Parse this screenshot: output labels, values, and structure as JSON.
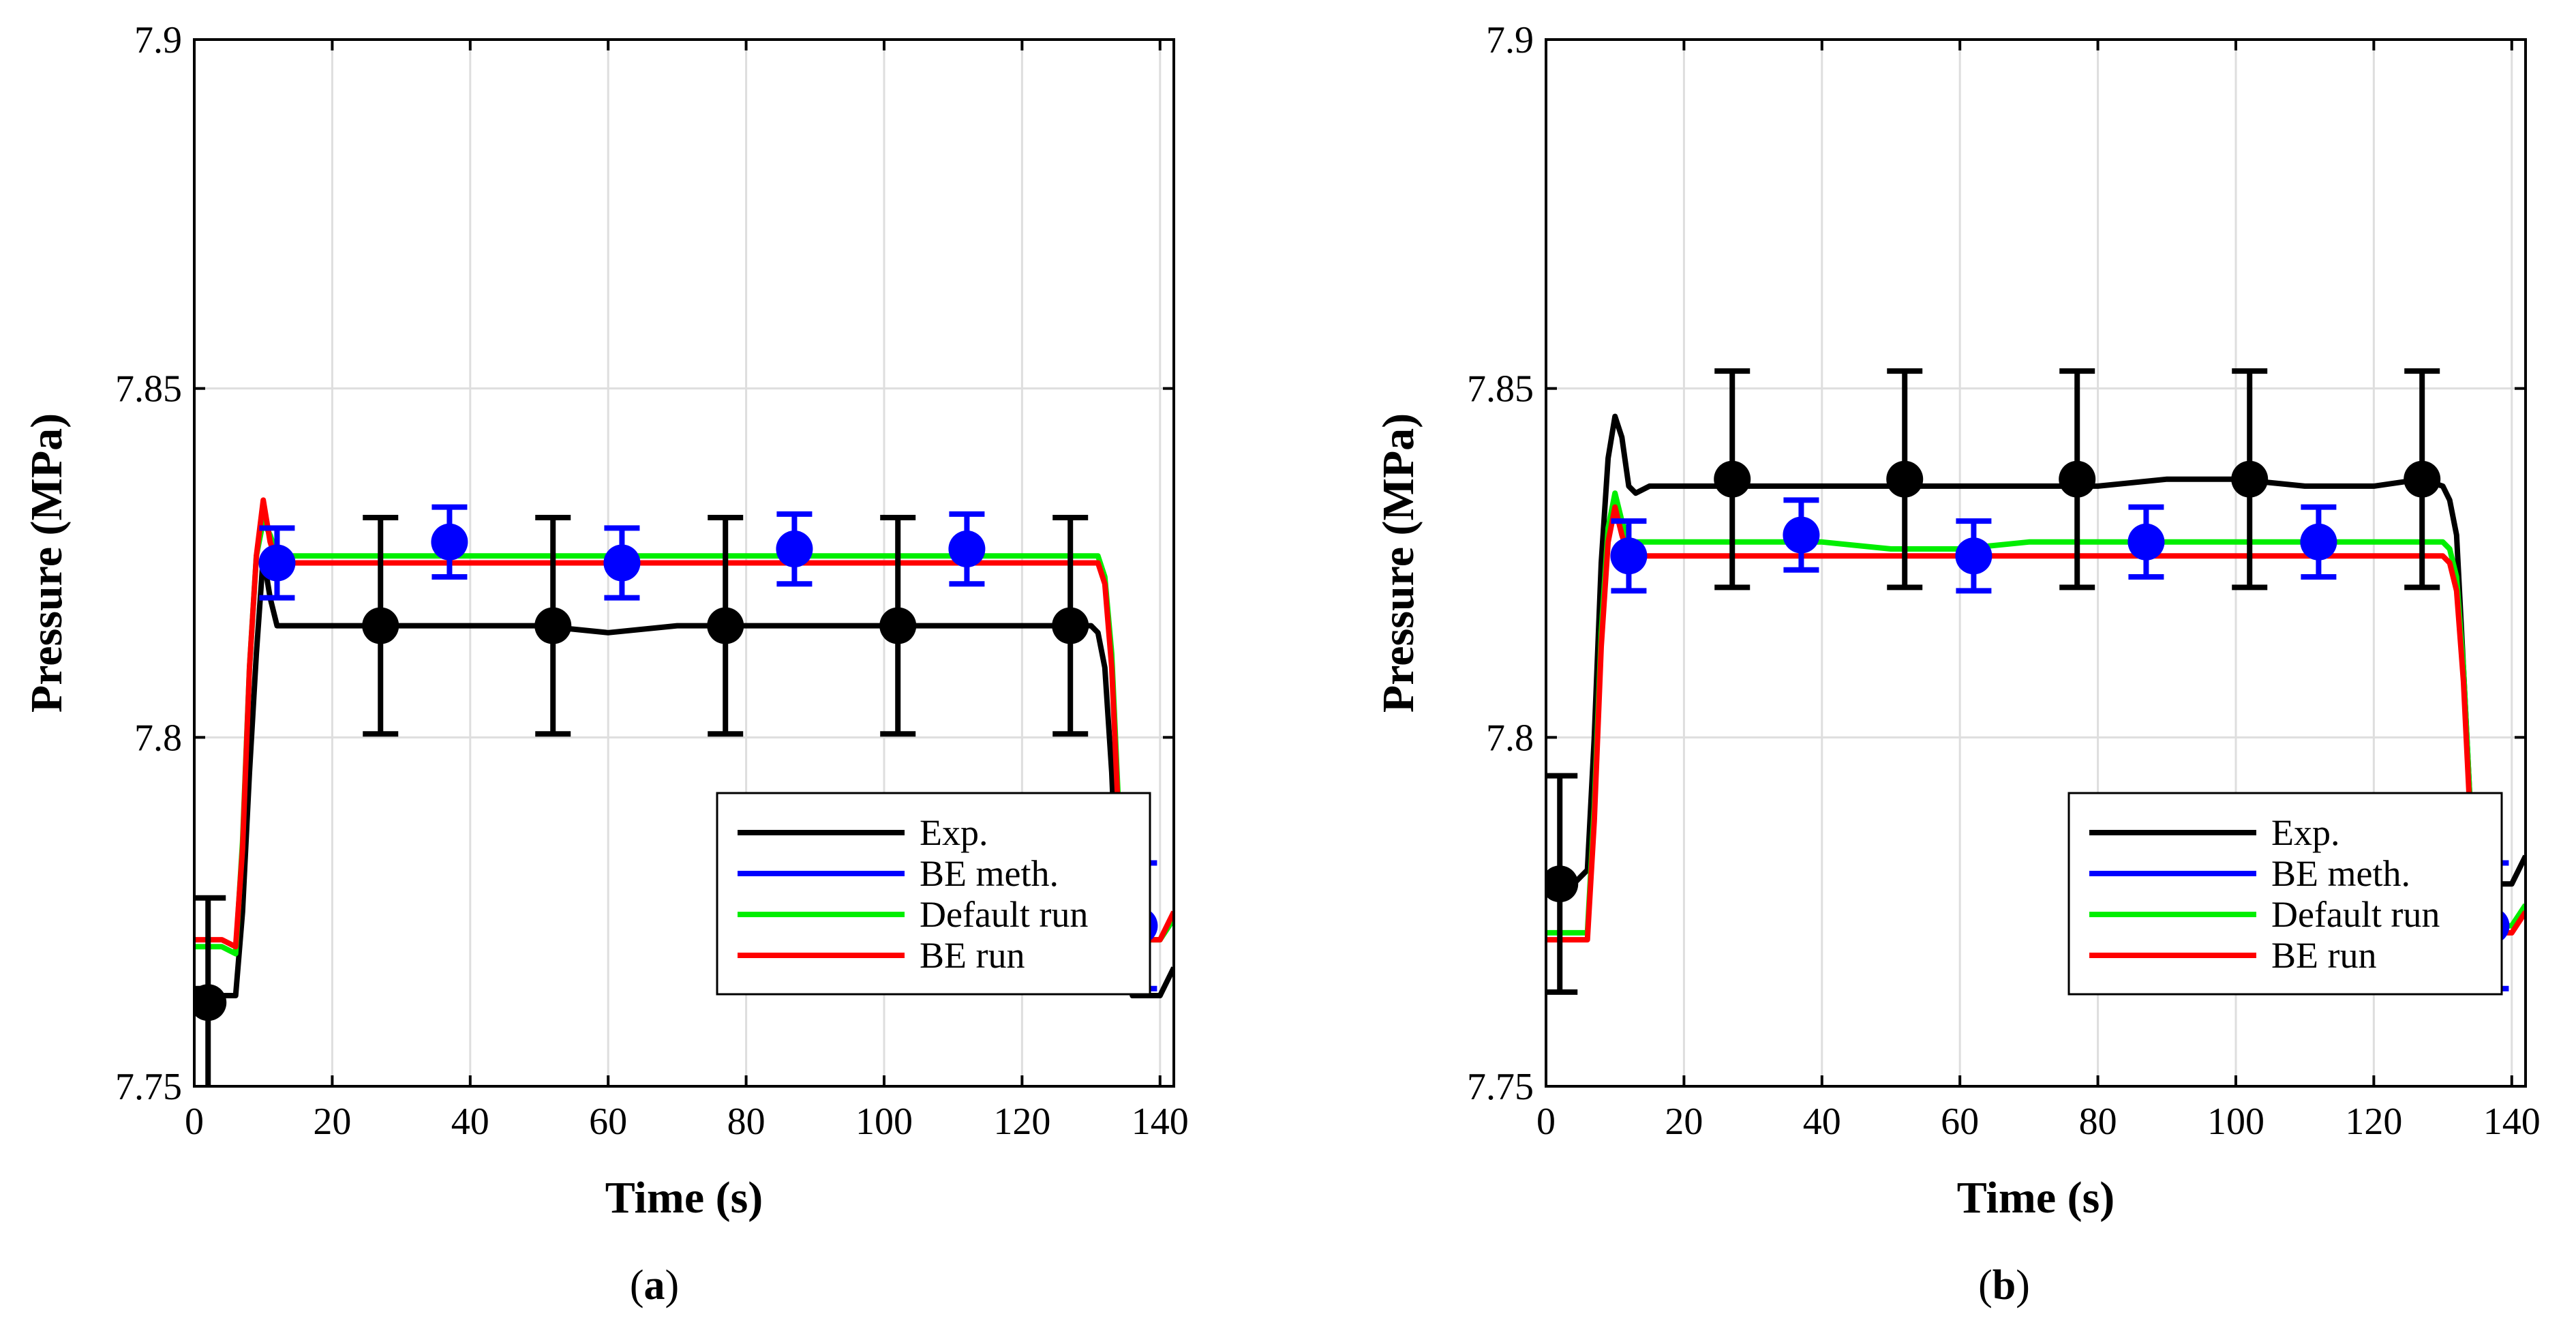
{
  "figure": {
    "panel_count": 2
  },
  "chart_data": [
    {
      "type": "line",
      "panel_label": "a",
      "xlabel": "Time (s)",
      "ylabel": "Pressure (MPa)",
      "xlim": [
        0,
        142
      ],
      "ylim": [
        7.75,
        7.9
      ],
      "xticks": [
        0,
        20,
        40,
        60,
        80,
        100,
        120,
        140
      ],
      "yticks": [
        7.75,
        7.8,
        7.85,
        7.9
      ],
      "xtick_labels": [
        "0",
        "20",
        "40",
        "60",
        "80",
        "100",
        "120",
        "140"
      ],
      "ytick_labels": [
        "7.75",
        "7.8",
        "7.85",
        "7.9"
      ],
      "grid": true,
      "legend_position": "bottom-right",
      "legend": [
        "Exp.",
        "BE meth.",
        "Default run",
        "BE run"
      ],
      "colors": {
        "exp": "#000000",
        "be_meth": "#0000ff",
        "default_run": "#00ee00",
        "be_run": "#ff0000"
      },
      "series": [
        {
          "name": "Exp.",
          "x": [
            0,
            2,
            4,
            6,
            7,
            8,
            9,
            10,
            11,
            12,
            15,
            20,
            30,
            40,
            50,
            60,
            70,
            80,
            90,
            100,
            110,
            120,
            127,
            130,
            131,
            132,
            133,
            134,
            136,
            138,
            140,
            142
          ],
          "y": [
            7.764,
            7.764,
            7.763,
            7.763,
            7.775,
            7.795,
            7.812,
            7.826,
            7.82,
            7.816,
            7.816,
            7.816,
            7.816,
            7.816,
            7.816,
            7.815,
            7.816,
            7.816,
            7.816,
            7.816,
            7.816,
            7.816,
            7.816,
            7.816,
            7.815,
            7.81,
            7.795,
            7.772,
            7.763,
            7.763,
            7.763,
            7.767
          ]
        },
        {
          "name": "Default run",
          "x": [
            0,
            2,
            4,
            6,
            7,
            8,
            9,
            10,
            11,
            12,
            15,
            20,
            30,
            40,
            50,
            60,
            70,
            80,
            90,
            100,
            110,
            120,
            130,
            131,
            132,
            133,
            134,
            135,
            137,
            140,
            142
          ],
          "y": [
            7.77,
            7.77,
            7.77,
            7.769,
            7.785,
            7.81,
            7.826,
            7.831,
            7.829,
            7.826,
            7.826,
            7.826,
            7.826,
            7.826,
            7.826,
            7.826,
            7.826,
            7.826,
            7.826,
            7.826,
            7.826,
            7.826,
            7.826,
            7.826,
            7.823,
            7.812,
            7.79,
            7.774,
            7.771,
            7.771,
            7.774
          ]
        },
        {
          "name": "BE run",
          "x": [
            0,
            2,
            4,
            6,
            7,
            8,
            9,
            10,
            11,
            12,
            15,
            20,
            30,
            40,
            50,
            60,
            70,
            80,
            90,
            100,
            110,
            120,
            130,
            131,
            132,
            133,
            134,
            135,
            137,
            140,
            142
          ],
          "y": [
            7.771,
            7.771,
            7.771,
            7.77,
            7.784,
            7.81,
            7.826,
            7.834,
            7.828,
            7.825,
            7.825,
            7.825,
            7.825,
            7.825,
            7.825,
            7.825,
            7.825,
            7.825,
            7.825,
            7.825,
            7.825,
            7.825,
            7.825,
            7.825,
            7.822,
            7.81,
            7.788,
            7.773,
            7.771,
            7.771,
            7.775
          ]
        }
      ],
      "markers": [
        {
          "name": "Exp.",
          "x": [
            2,
            27,
            52,
            77,
            102,
            127
          ],
          "y": [
            7.762,
            7.816,
            7.816,
            7.816,
            7.816,
            7.816
          ],
          "error": [
            0.015,
            0.0155,
            0.0155,
            0.0155,
            0.0155,
            0.0155
          ]
        },
        {
          "name": "BE meth.",
          "x": [
            12,
            37,
            62,
            87,
            112,
            137
          ],
          "y": [
            7.825,
            7.828,
            7.825,
            7.827,
            7.827,
            7.773
          ],
          "error": [
            0.005,
            0.005,
            0.005,
            0.005,
            0.005,
            0.009
          ]
        }
      ]
    },
    {
      "type": "line",
      "panel_label": "b",
      "xlabel": "Time (s)",
      "ylabel": "Pressure (MPa)",
      "xlim": [
        0,
        142
      ],
      "ylim": [
        7.75,
        7.9
      ],
      "xticks": [
        0,
        20,
        40,
        60,
        80,
        100,
        120,
        140
      ],
      "yticks": [
        7.75,
        7.8,
        7.85,
        7.9
      ],
      "xtick_labels": [
        "0",
        "20",
        "40",
        "60",
        "80",
        "100",
        "120",
        "140"
      ],
      "ytick_labels": [
        "7.75",
        "7.8",
        "7.85",
        "7.9"
      ],
      "grid": true,
      "legend_position": "bottom-right",
      "legend": [
        "Exp.",
        "BE meth.",
        "Default run",
        "BE run"
      ],
      "colors": {
        "exp": "#000000",
        "be_meth": "#0000ff",
        "default_run": "#00ee00",
        "be_run": "#ff0000"
      },
      "series": [
        {
          "name": "Exp.",
          "x": [
            0,
            2,
            4,
            6,
            7,
            8,
            9,
            10,
            11,
            12,
            13,
            15,
            20,
            30,
            40,
            50,
            60,
            70,
            80,
            90,
            100,
            110,
            120,
            127,
            130,
            131,
            132,
            133,
            134,
            136,
            138,
            140,
            142
          ],
          "y": [
            7.778,
            7.778,
            7.779,
            7.781,
            7.8,
            7.825,
            7.84,
            7.846,
            7.843,
            7.836,
            7.835,
            7.836,
            7.836,
            7.836,
            7.836,
            7.836,
            7.836,
            7.836,
            7.836,
            7.837,
            7.837,
            7.836,
            7.836,
            7.837,
            7.836,
            7.834,
            7.829,
            7.81,
            7.79,
            7.78,
            7.779,
            7.779,
            7.783
          ]
        },
        {
          "name": "Default run",
          "x": [
            0,
            2,
            4,
            6,
            7,
            8,
            9,
            10,
            11,
            12,
            15,
            20,
            30,
            40,
            50,
            60,
            70,
            80,
            90,
            100,
            110,
            120,
            130,
            131,
            132,
            133,
            134,
            135,
            137,
            140,
            142
          ],
          "y": [
            7.772,
            7.772,
            7.772,
            7.772,
            7.79,
            7.815,
            7.83,
            7.835,
            7.831,
            7.828,
            7.828,
            7.828,
            7.828,
            7.828,
            7.827,
            7.827,
            7.828,
            7.828,
            7.828,
            7.828,
            7.828,
            7.828,
            7.828,
            7.827,
            7.823,
            7.81,
            7.79,
            7.776,
            7.773,
            7.773,
            7.776
          ]
        },
        {
          "name": "BE run",
          "x": [
            0,
            2,
            4,
            6,
            7,
            8,
            9,
            10,
            11,
            12,
            15,
            20,
            30,
            40,
            50,
            60,
            70,
            80,
            90,
            100,
            110,
            120,
            130,
            131,
            132,
            133,
            134,
            135,
            137,
            140,
            142
          ],
          "y": [
            7.771,
            7.771,
            7.771,
            7.771,
            7.788,
            7.813,
            7.828,
            7.833,
            7.829,
            7.826,
            7.826,
            7.826,
            7.826,
            7.826,
            7.826,
            7.826,
            7.826,
            7.826,
            7.826,
            7.826,
            7.826,
            7.826,
            7.826,
            7.825,
            7.821,
            7.808,
            7.788,
            7.774,
            7.772,
            7.772,
            7.775
          ]
        }
      ],
      "markers": [
        {
          "name": "Exp.",
          "x": [
            2,
            27,
            52,
            77,
            102,
            127
          ],
          "y": [
            7.779,
            7.837,
            7.837,
            7.837,
            7.837,
            7.837
          ],
          "error": [
            0.0155,
            0.0155,
            0.0155,
            0.0155,
            0.0155,
            0.0155
          ]
        },
        {
          "name": "BE meth.",
          "x": [
            12,
            37,
            62,
            87,
            112,
            137
          ],
          "y": [
            7.826,
            7.829,
            7.826,
            7.828,
            7.828,
            7.773
          ],
          "error": [
            0.005,
            0.005,
            0.005,
            0.005,
            0.005,
            0.009
          ]
        }
      ]
    }
  ]
}
